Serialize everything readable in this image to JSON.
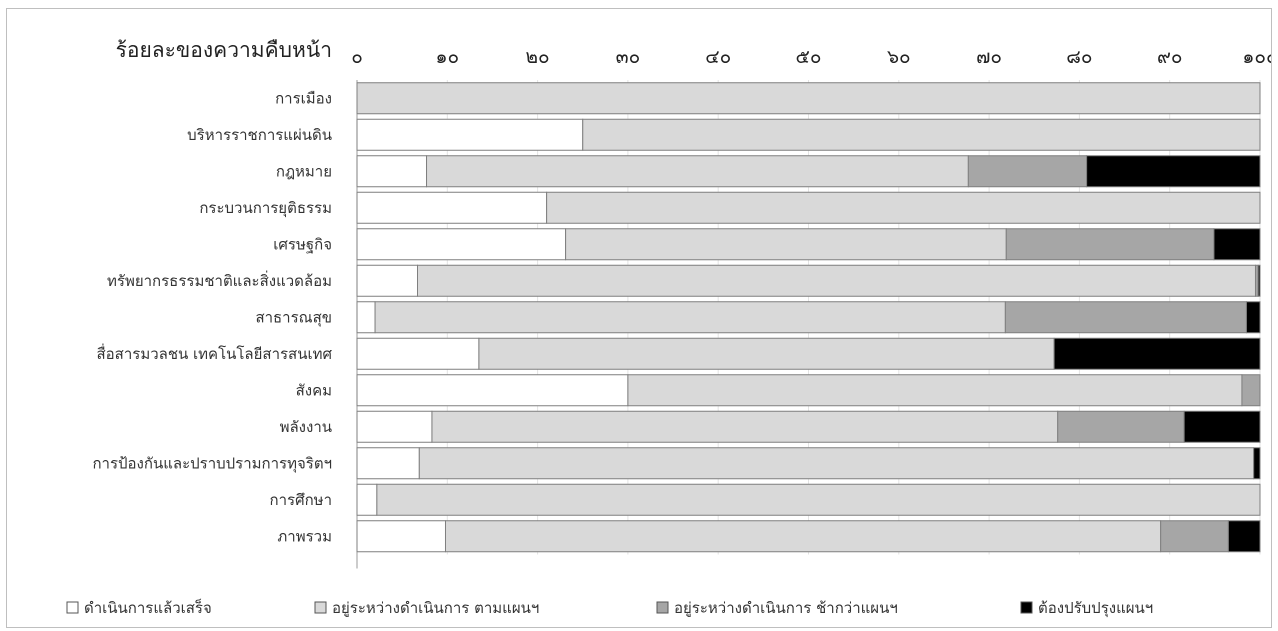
{
  "chart_data": {
    "type": "bar",
    "orientation": "horizontal",
    "stacked": true,
    "title": "ร้อยละของความคืบหน้า",
    "xlim": [
      0,
      100
    ],
    "xticks": [
      "๐",
      "๑๐",
      "๒๐",
      "๓๐",
      "๔๐",
      "๕๐",
      "๖๐",
      "๗๐",
      "๘๐",
      "๙๐",
      "๑๐๐"
    ],
    "axis_position": "top",
    "legend_position": "bottom",
    "categories": [
      "การเมือง",
      "บริหารราชการแผ่นดิน",
      "กฎหมาย",
      "กระบวนการยุติธรรม",
      "เศรษฐกิจ",
      "ทรัพยากรธรรมชาติและสิ่งแวดล้อม",
      "สาธารณสุข",
      "สื่อสารมวลชน เทคโนโลยีสารสนเทศ",
      "สังคม",
      "พลังงาน",
      "การป้องกันและปราบปรามการทุจริตฯ",
      "การศึกษา",
      "ภาพรวม"
    ],
    "series": [
      {
        "name": "ดำเนินการแล้วเสร็จ",
        "color": "#ffffff",
        "values": [
          0,
          25,
          7.7,
          21,
          23.1,
          6.7,
          2,
          13.5,
          30,
          8.3,
          6.9,
          2.2,
          9.8
        ]
      },
      {
        "name": "อยู่ระหว่างดำเนินการ ตามแผนฯ",
        "color": "#d9d9d9",
        "values": [
          100,
          75,
          60,
          79,
          48.8,
          92.8,
          69.8,
          63.7,
          68,
          69.3,
          92.4,
          97.8,
          79.2
        ]
      },
      {
        "name": "อยู่ระหว่างดำเนินการ ช้ากว่าแผนฯ",
        "color": "#a6a6a6",
        "values": [
          0,
          0,
          13.1,
          0,
          23,
          0.3,
          26.7,
          0,
          2,
          14,
          0,
          0,
          7.5
        ]
      },
      {
        "name": "ต้องปรับปรุงแผนฯ",
        "color": "#000000",
        "values": [
          0,
          0,
          19.2,
          0,
          5.1,
          0.2,
          1.5,
          22.8,
          0,
          8.4,
          0.7,
          0,
          3.5
        ]
      }
    ]
  }
}
